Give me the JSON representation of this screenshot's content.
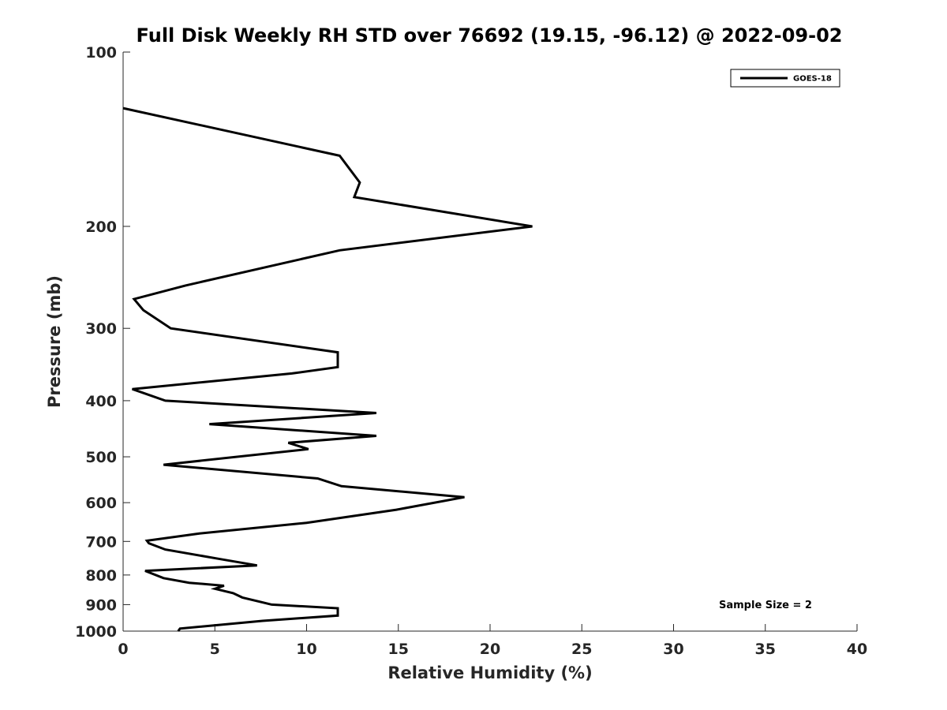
{
  "chart_data": {
    "type": "line",
    "title": "Full Disk Weekly RH STD over 76692 (19.15, -96.12) @ 2022-09-02",
    "xlabel": "Relative Humidity (%)",
    "ylabel": "Pressure (mb)",
    "xlim": [
      0,
      40
    ],
    "ylim": [
      100,
      1000
    ],
    "y_scale": "log",
    "y_reversed": true,
    "x_ticks": [
      "0",
      "5",
      "10",
      "15",
      "20",
      "25",
      "30",
      "35",
      "40"
    ],
    "y_ticks": [
      "100",
      "200",
      "300",
      "400",
      "500",
      "600",
      "700",
      "800",
      "900",
      "1000"
    ],
    "grid": false,
    "legend_position": "top-right",
    "annotation": "Sample Size = 2",
    "series": [
      {
        "name": "GOES-18",
        "color": "#000000",
        "x": [
          0.0,
          11.8,
          12.9,
          12.6,
          22.3,
          11.8,
          3.4,
          0.6,
          1.1,
          2.6,
          11.7,
          11.7,
          9.2,
          0.5,
          2.3,
          13.8,
          4.7,
          13.8,
          9.0,
          10.1,
          2.2,
          10.6,
          11.9,
          18.6,
          14.9,
          10.0,
          4.2,
          1.3,
          1.4,
          2.3,
          5.2,
          7.3,
          1.2,
          2.2,
          3.6,
          5.5,
          5.0,
          6.0,
          6.5,
          8.1,
          11.7,
          11.7,
          7.6,
          3.1,
          3.0
        ],
        "y": [
          125,
          151,
          168,
          178,
          200,
          220,
          253,
          267,
          279,
          300,
          330,
          350,
          359,
          382,
          400,
          420,
          439,
          460,
          473,
          485,
          516,
          545,
          562,
          587,
          617,
          650,
          678,
          698,
          705,
          723,
          750,
          770,
          787,
          810,
          825,
          835,
          845,
          860,
          875,
          900,
          913,
          940,
          960,
          990,
          1000
        ]
      }
    ]
  }
}
